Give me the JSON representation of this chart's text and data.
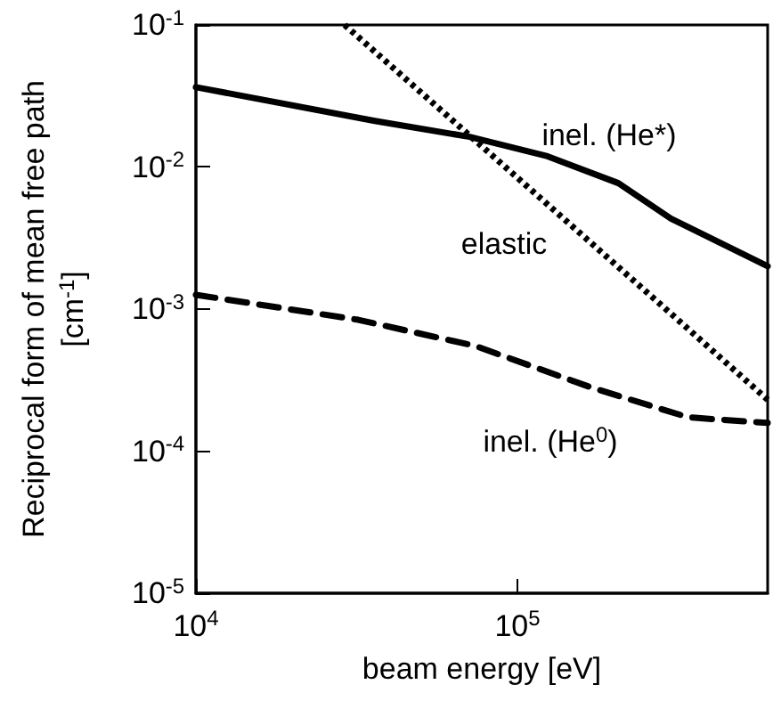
{
  "chart_data": {
    "type": "line",
    "xlabel": "beam energy [eV]",
    "ylabel": "Reciprocal form of mean free path\n[cm$^{-1}$]",
    "log": "xy",
    "grid": false,
    "marker": "none",
    "xlim": [
      10000,
      600000
    ],
    "xticks": [
      {
        "value": 10000,
        "label": "10$^{4}$"
      },
      {
        "value": 100000,
        "label": "10$^{5}$"
      }
    ],
    "ylim": [
      1e-05,
      0.1
    ],
    "yticks": [
      {
        "value": 1e-05,
        "label": "10$^{-5}$"
      },
      {
        "value": 0.0001,
        "label": "10$^{-4}$"
      },
      {
        "value": 0.001,
        "label": "10$^{-3}$"
      },
      {
        "value": 0.01,
        "label": "10$^{-2}$"
      },
      {
        "value": 0.1,
        "label": "10$^{-1}$"
      }
    ],
    "series": [
      {
        "color": "#000000",
        "line_style": "solid",
        "x": [
          10000,
          36000,
          71000,
          124000,
          206000,
          300000,
          600000
        ],
        "values": [
          0.0365,
          0.0211,
          0.0163,
          0.0119,
          0.0077,
          0.00434,
          0.002
        ]
      },
      {
        "color": "#000000",
        "line_style": "dotted",
        "x": [
          29000,
          100000,
          300000,
          600000
        ],
        "values": [
          0.1,
          0.0084,
          0.00093,
          0.00023
        ]
      },
      {
        "color": "#000000",
        "line_style": "dashed",
        "x": [
          10000,
          32000,
          74000,
          170000,
          340000,
          600000
        ],
        "values": [
          0.00126,
          0.00084,
          0.00055,
          0.00028,
          0.000173,
          0.000158
        ]
      }
    ],
    "annotations": [
      "inel. (He*)",
      "elastic",
      "inel. (He$^{0}$)"
    ]
  }
}
